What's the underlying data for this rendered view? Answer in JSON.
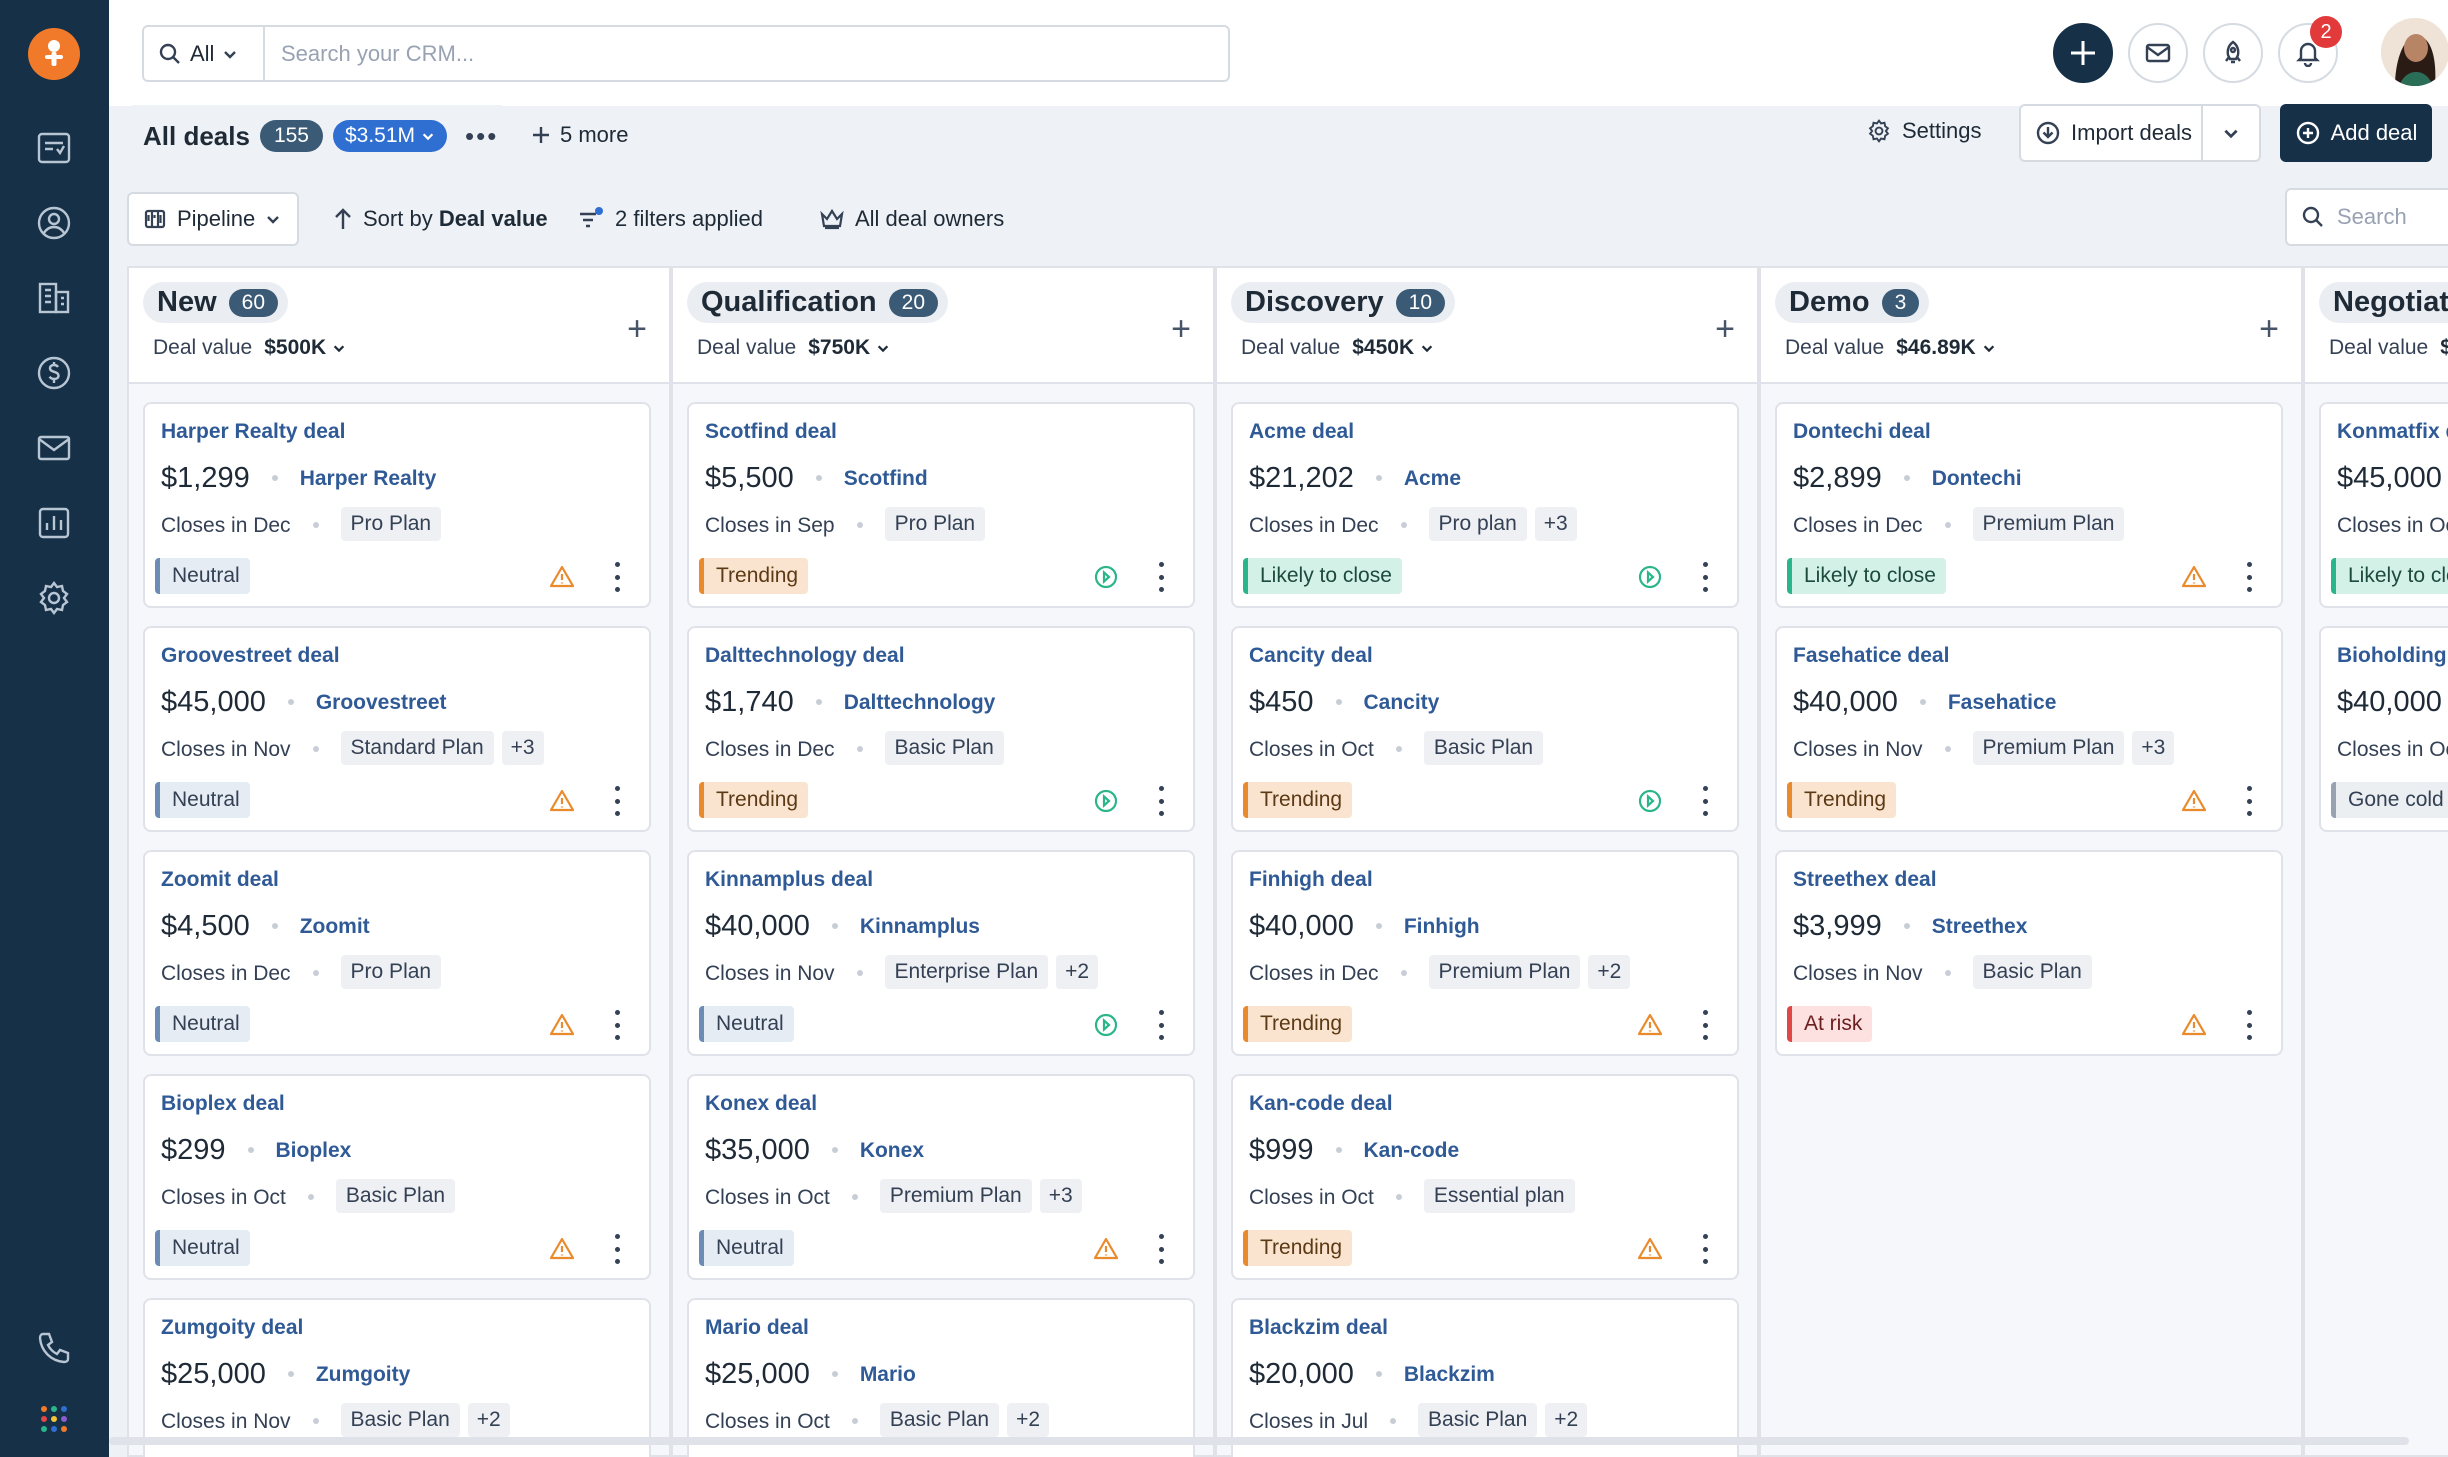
{
  "search": {
    "scope": "All",
    "placeholder": "Search your CRM..."
  },
  "notifications": {
    "count": "2"
  },
  "view": {
    "title": "All deals",
    "count": "155",
    "total": "$3.51M",
    "more_tabs": "5 more",
    "settings": "Settings",
    "import": "Import deals",
    "add": "Add deal"
  },
  "toolbar": {
    "pipeline": "Pipeline",
    "sort_prefix": "Sort by ",
    "sort_field": "Deal value",
    "filters": "2 filters applied",
    "owners": "All deal owners",
    "search_placeholder": "Search"
  },
  "colors": {
    "sidebar": "#163048",
    "accent_blue": "#2f6fd1",
    "brand_orange": "#f07a2a"
  },
  "columns": [
    {
      "name": "New",
      "count": "60",
      "value_label": "Deal value",
      "value": "$500K",
      "cards": [
        {
          "name": "Harper Realty deal",
          "amount": "$1,299",
          "company": "Harper Realty",
          "closes": "Closes in Dec",
          "plan": "Pro Plan",
          "extra": "",
          "status": "Neutral",
          "status_type": "neutral",
          "signal": "warning-icon"
        },
        {
          "name": "Groovestreet deal",
          "amount": "$45,000",
          "company": "Groovestreet",
          "closes": "Closes in Nov",
          "plan": "Standard Plan",
          "extra": "+3",
          "status": "Neutral",
          "status_type": "neutral",
          "signal": "warning-icon"
        },
        {
          "name": "Zoomit deal",
          "amount": "$4,500",
          "company": "Zoomit",
          "closes": "Closes in Dec",
          "plan": "Pro Plan",
          "extra": "",
          "status": "Neutral",
          "status_type": "neutral",
          "signal": "warning-icon"
        },
        {
          "name": "Bioplex deal",
          "amount": "$299",
          "company": "Bioplex",
          "closes": "Closes in Oct",
          "plan": "Basic Plan",
          "extra": "",
          "status": "Neutral",
          "status_type": "neutral",
          "signal": "warning-icon"
        },
        {
          "name": "Zumgoity deal",
          "amount": "$25,000",
          "company": "Zumgoity",
          "closes": "Closes in Nov",
          "plan": "Basic Plan",
          "extra": "+2",
          "status": "",
          "status_type": "neutral",
          "signal": ""
        }
      ]
    },
    {
      "name": "Qualification",
      "count": "20",
      "value_label": "Deal value",
      "value": "$750K",
      "cards": [
        {
          "name": "Scotfind deal",
          "amount": "$5,500",
          "company": "Scotfind",
          "closes": "Closes in Sep",
          "plan": "Pro Plan",
          "extra": "",
          "status": "Trending",
          "status_type": "trending",
          "signal": "play-circle-icon"
        },
        {
          "name": "Dalttechnology deal",
          "amount": "$1,740",
          "company": "Dalttechnology",
          "closes": "Closes in Dec",
          "plan": "Basic Plan",
          "extra": "",
          "status": "Trending",
          "status_type": "trending",
          "signal": "play-circle-icon"
        },
        {
          "name": "Kinnamplus deal",
          "amount": "$40,000",
          "company": "Kinnamplus",
          "closes": "Closes in Nov",
          "plan": "Enterprise Plan",
          "extra": "+2",
          "status": "Neutral",
          "status_type": "neutral",
          "signal": "play-circle-icon"
        },
        {
          "name": "Konex deal",
          "amount": "$35,000",
          "company": "Konex",
          "closes": "Closes in Oct",
          "plan": "Premium Plan",
          "extra": "+3",
          "status": "Neutral",
          "status_type": "neutral",
          "signal": "warning-icon"
        },
        {
          "name": "Mario deal",
          "amount": "$25,000",
          "company": "Mario",
          "closes": "Closes in Oct",
          "plan": "Basic Plan",
          "extra": "+2",
          "status": "",
          "status_type": "neutral",
          "signal": ""
        }
      ]
    },
    {
      "name": "Discovery",
      "count": "10",
      "value_label": "Deal value",
      "value": "$450K",
      "cards": [
        {
          "name": "Acme deal",
          "amount": "$21,202",
          "company": "Acme",
          "closes": "Closes in Dec",
          "plan": "Pro plan",
          "extra": "+3",
          "status": "Likely to close",
          "status_type": "likely",
          "signal": "play-circle-icon"
        },
        {
          "name": "Cancity deal",
          "amount": "$450",
          "company": "Cancity",
          "closes": "Closes in Oct",
          "plan": "Basic Plan",
          "extra": "",
          "status": "Trending",
          "status_type": "trending",
          "signal": "play-circle-icon"
        },
        {
          "name": "Finhigh deal",
          "amount": "$40,000",
          "company": "Finhigh",
          "closes": "Closes in Dec",
          "plan": "Premium Plan",
          "extra": "+2",
          "status": "Trending",
          "status_type": "trending",
          "signal": "warning-icon"
        },
        {
          "name": "Kan-code deal",
          "amount": "$999",
          "company": "Kan-code",
          "closes": "Closes in Oct",
          "plan": "Essential plan",
          "extra": "",
          "status": "Trending",
          "status_type": "trending",
          "signal": "warning-icon"
        },
        {
          "name": "Blackzim deal",
          "amount": "$20,000",
          "company": "Blackzim",
          "closes": "Closes in Jul",
          "plan": "Basic Plan",
          "extra": "+2",
          "status": "",
          "status_type": "neutral",
          "signal": ""
        }
      ]
    },
    {
      "name": "Demo",
      "count": "3",
      "value_label": "Deal value",
      "value": "$46.89K",
      "cards": [
        {
          "name": "Dontechi deal",
          "amount": "$2,899",
          "company": "Dontechi",
          "closes": "Closes in Dec",
          "plan": "Premium Plan",
          "extra": "",
          "status": "Likely to close",
          "status_type": "likely",
          "signal": "warning-icon"
        },
        {
          "name": "Fasehatice deal",
          "amount": "$40,000",
          "company": "Fasehatice",
          "closes": "Closes in Nov",
          "plan": "Premium Plan",
          "extra": "+3",
          "status": "Trending",
          "status_type": "trending",
          "signal": "warning-icon"
        },
        {
          "name": "Streethex deal",
          "amount": "$3,999",
          "company": "Streethex",
          "closes": "Closes in Nov",
          "plan": "Basic Plan",
          "extra": "",
          "status": "At risk",
          "status_type": "risk",
          "signal": "warning-icon"
        }
      ]
    },
    {
      "name": "Negotiatio",
      "count": "",
      "value_label": "Deal value",
      "value": "$",
      "cards": [
        {
          "name": "Konmatfix de",
          "amount": "$45,000",
          "company": "",
          "closes": "Closes in Oct",
          "plan": "",
          "extra": "",
          "status": "Likely to clos",
          "status_type": "likely",
          "signal": ""
        },
        {
          "name": "Bioholding de",
          "amount": "$40,000",
          "company": "",
          "closes": "Closes in Oct",
          "plan": "",
          "extra": "",
          "status": "Gone cold",
          "status_type": "cold",
          "signal": ""
        }
      ]
    }
  ]
}
